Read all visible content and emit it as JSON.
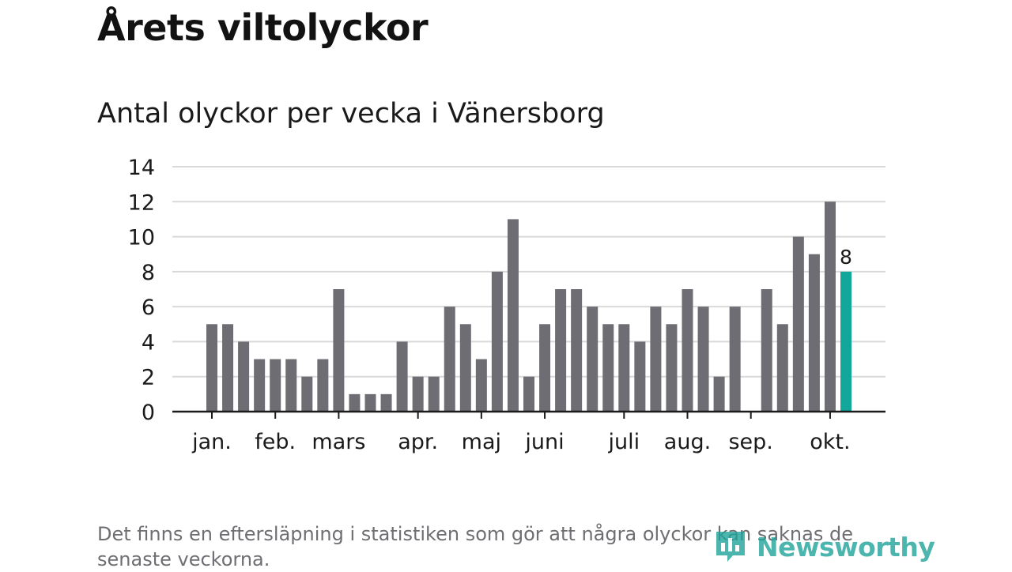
{
  "title": "Årets viltolyckor",
  "subtitle": "Antal olyckor per vecka i Vänersborg",
  "footnote": "Det finns en eftersläpning i statistiken som gör att några olyckor kan saknas de senaste veckorna.",
  "brand": {
    "name": "Newsworthy",
    "color": "#1fa39a"
  },
  "colors": {
    "bar": "#6e6d73",
    "highlight": "#12a79b",
    "grid": "#d9d9d9",
    "axis": "#1a1a1a"
  },
  "chart_data": {
    "type": "bar",
    "ylim": [
      0,
      14
    ],
    "yticks": [
      "0",
      "2",
      "4",
      "6",
      "8",
      "10",
      "12",
      "14"
    ],
    "month_labels": [
      {
        "label": "jan.",
        "week": 1
      },
      {
        "label": "feb.",
        "week": 5
      },
      {
        "label": "mars",
        "week": 9
      },
      {
        "label": "apr.",
        "week": 14
      },
      {
        "label": "maj",
        "week": 18
      },
      {
        "label": "juni",
        "week": 22
      },
      {
        "label": "juli",
        "week": 27
      },
      {
        "label": "aug.",
        "week": 31
      },
      {
        "label": "sep.",
        "week": 35
      },
      {
        "label": "okt.",
        "week": 40
      }
    ],
    "month_tick_weeks": [
      1,
      5,
      9,
      14,
      18,
      22,
      27,
      31,
      35,
      40
    ],
    "weeks": [
      1,
      2,
      3,
      4,
      5,
      6,
      7,
      8,
      9,
      10,
      11,
      12,
      13,
      14,
      15,
      16,
      17,
      18,
      19,
      20,
      21,
      22,
      23,
      24,
      25,
      26,
      27,
      28,
      29,
      30,
      31,
      32,
      33,
      34,
      35,
      36,
      37,
      38,
      39,
      40
    ],
    "values": [
      5,
      5,
      4,
      3,
      3,
      3,
      2,
      3,
      7,
      1,
      1,
      1,
      4,
      2,
      2,
      6,
      5,
      3,
      8,
      11,
      2,
      5,
      7,
      7,
      6,
      5,
      5,
      4,
      6,
      5,
      7,
      6,
      2,
      6,
      0,
      7,
      5,
      10,
      9,
      12
    ],
    "highlight": {
      "week": 41,
      "value": 8,
      "label": "8"
    }
  }
}
